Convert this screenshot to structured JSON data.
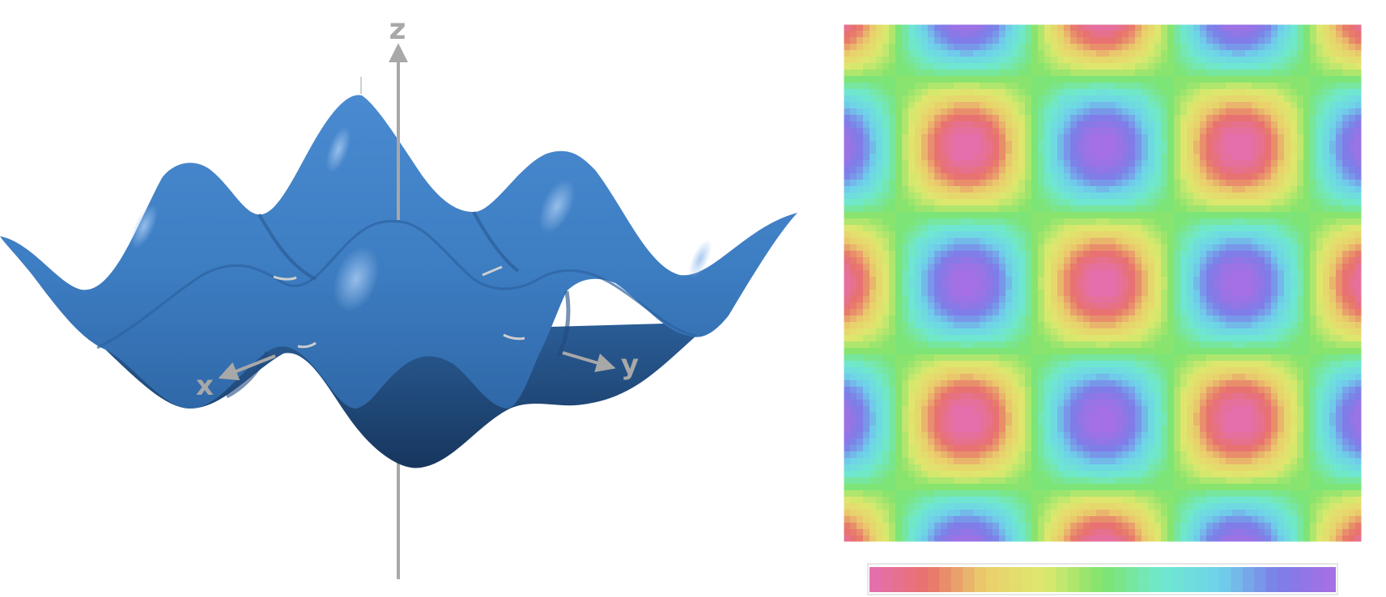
{
  "surface_plot": {
    "axes": {
      "z_label": "z",
      "x_label": "x",
      "y_label": "y"
    },
    "surface_color": "#3f80c6",
    "axis_color": "#a8a8a8"
  },
  "contour_plot": {
    "colormap": [
      "#e46fb3",
      "#e8726a",
      "#ead06c",
      "#dde86e",
      "#7ee46e",
      "#6fe8cf",
      "#6fd2ea",
      "#7c7de8",
      "#a86fe4"
    ],
    "colorbar_bins": 40
  }
}
